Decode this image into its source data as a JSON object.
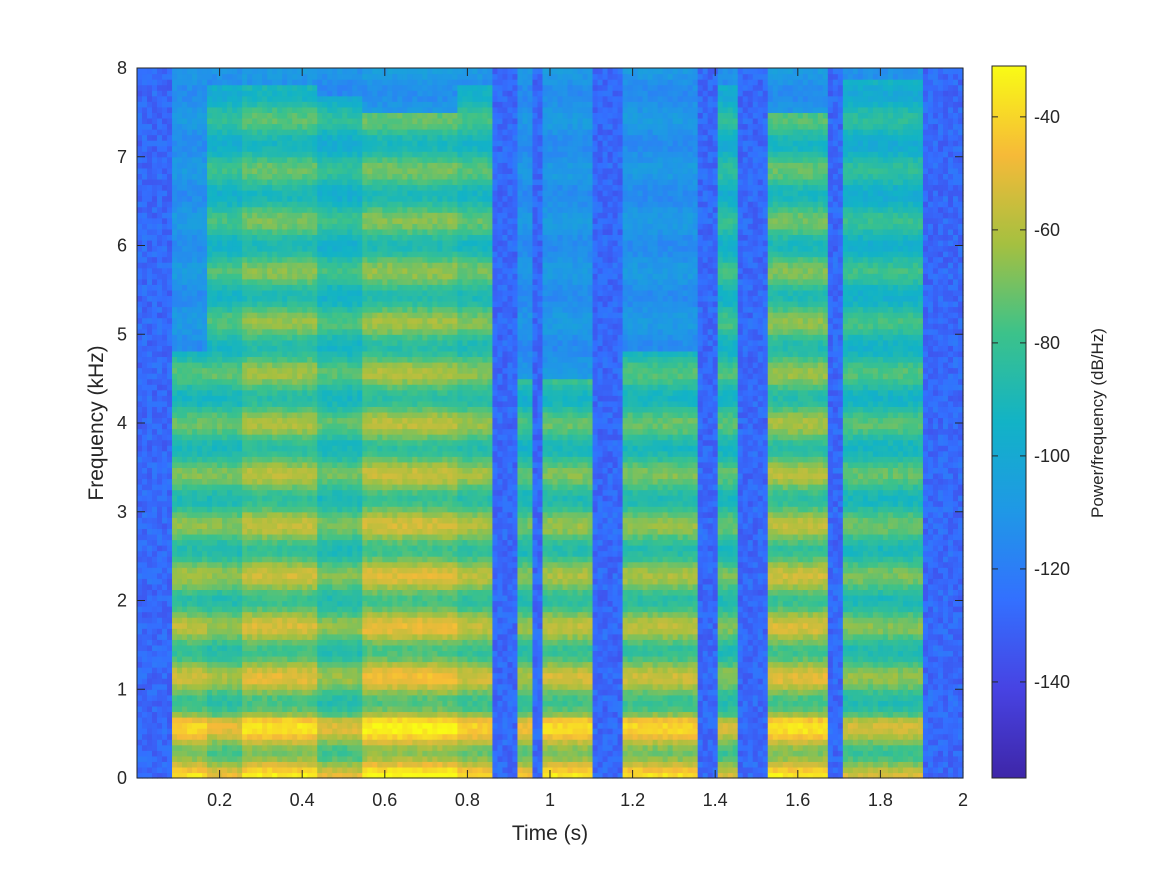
{
  "chart_data": {
    "type": "heatmap",
    "title": "",
    "xlabel": "Time (s)",
    "ylabel": "Frequency (kHz)",
    "xlim": [
      0,
      2
    ],
    "ylim": [
      0,
      8
    ],
    "x_ticks": [
      0.2,
      0.4,
      0.6,
      0.8,
      1,
      1.2,
      1.4,
      1.6,
      1.8,
      2
    ],
    "x_tick_labels": [
      "0.2",
      "0.4",
      "0.6",
      "0.8",
      "1",
      "1.2",
      "1.4",
      "1.6",
      "1.8",
      "2"
    ],
    "y_ticks": [
      0,
      1,
      2,
      3,
      4,
      5,
      6,
      7,
      8
    ],
    "y_tick_labels": [
      "0",
      "1",
      "2",
      "3",
      "4",
      "5",
      "6",
      "7",
      "8"
    ],
    "colorbar": {
      "label": "Power/frequency (dB/Hz)",
      "range": [
        -157,
        -31
      ],
      "ticks": [
        -40,
        -60,
        -80,
        -100,
        -120,
        -140
      ],
      "tick_labels": [
        "-40",
        "-60",
        "-80",
        "-100",
        "-120",
        "-140"
      ],
      "colormap": "parula"
    },
    "background_db": -128,
    "voiced_segments": [
      {
        "t_start": 0.09,
        "t_end": 0.17,
        "peak_db": -48,
        "max_khz": 4.8
      },
      {
        "t_start": 0.17,
        "t_end": 0.25,
        "peak_db": -58,
        "max_khz": 7.8
      },
      {
        "t_start": 0.25,
        "t_end": 0.44,
        "peak_db": -46,
        "max_khz": 7.8
      },
      {
        "t_start": 0.44,
        "t_end": 0.54,
        "peak_db": -60,
        "max_khz": 7.7
      },
      {
        "t_start": 0.54,
        "t_end": 0.77,
        "peak_db": -42,
        "max_khz": 7.5
      },
      {
        "t_start": 0.78,
        "t_end": 0.86,
        "peak_db": -50,
        "max_khz": 7.8
      },
      {
        "t_start": 0.92,
        "t_end": 0.96,
        "peak_db": -54,
        "max_khz": 4.5
      },
      {
        "t_start": 0.98,
        "t_end": 1.1,
        "peak_db": -46,
        "max_khz": 4.5
      },
      {
        "t_start": 1.18,
        "t_end": 1.36,
        "peak_db": -48,
        "max_khz": 4.8
      },
      {
        "t_start": 1.41,
        "t_end": 1.46,
        "peak_db": -62,
        "max_khz": 7.8
      },
      {
        "t_start": 1.53,
        "t_end": 1.67,
        "peak_db": -46,
        "max_khz": 7.5
      },
      {
        "t_start": 1.71,
        "t_end": 1.9,
        "peak_db": -62,
        "max_khz": 7.9
      }
    ]
  }
}
